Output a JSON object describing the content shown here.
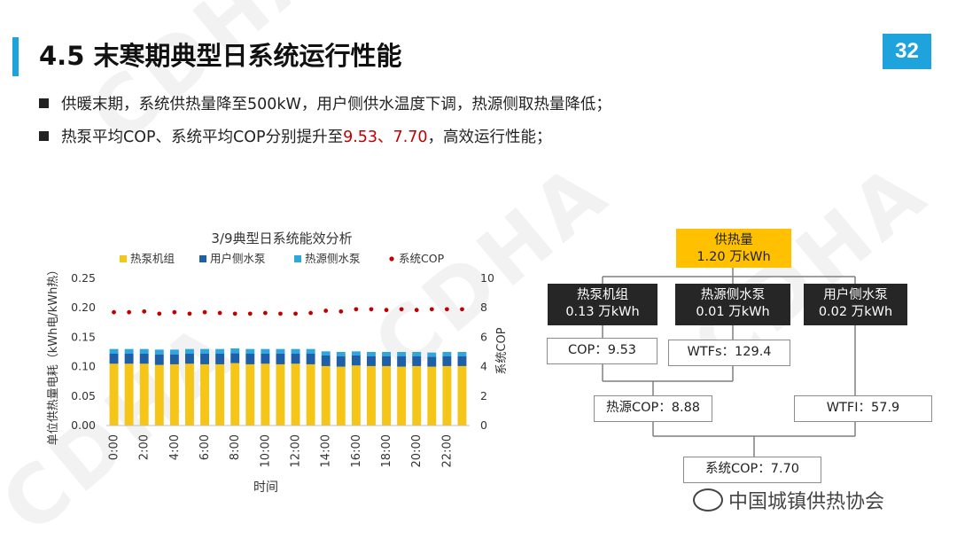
{
  "slide": {
    "title": "4.5 末寒期典型日系统运行性能",
    "page_number": "32",
    "watermark": "CDHA",
    "bullets": [
      {
        "text": "供暖末期，系统供热量降至500kW，用户侧供水温度下调，热源侧取热量降低；"
      },
      {
        "pre": "热泵平均COP、系统平均COP分别提升至",
        "highlight": "9.53、7.70",
        "post": "，高效运行性能；"
      }
    ],
    "footer_logo": "中国城镇供热协会",
    "accent_color": "#1fa3dc",
    "highlight_color": "#c00000"
  },
  "chart_data": {
    "type": "bar",
    "title": "3/9典型日系统能效分析",
    "xlabel": "时间",
    "ylabel": "单位供热量电耗（kWh电/kWh热）",
    "y2label": "系统COP",
    "ylim": [
      0,
      0.25
    ],
    "y2lim": [
      0,
      10
    ],
    "yticks": [
      "0.00",
      "0.05",
      "0.10",
      "0.15",
      "0.20",
      "0.25"
    ],
    "y2ticks": [
      "0",
      "2",
      "4",
      "6",
      "8",
      "10"
    ],
    "xtick_labels": [
      "0:00",
      "2:00",
      "4:00",
      "6:00",
      "8:00",
      "10:00",
      "12:00",
      "14:00",
      "16:00",
      "18:00",
      "20:00",
      "22:00"
    ],
    "legend_position": "top",
    "categories": [
      "0:00",
      "1:00",
      "2:00",
      "3:00",
      "4:00",
      "5:00",
      "6:00",
      "7:00",
      "8:00",
      "9:00",
      "10:00",
      "11:00",
      "12:00",
      "13:00",
      "14:00",
      "15:00",
      "16:00",
      "17:00",
      "18:00",
      "19:00",
      "20:00",
      "21:00",
      "22:00",
      "23:00"
    ],
    "series": [
      {
        "name": "热泵机组",
        "kind": "bar",
        "color": "#f5c518",
        "values": [
          0.105,
          0.105,
          0.105,
          0.103,
          0.104,
          0.105,
          0.104,
          0.104,
          0.106,
          0.104,
          0.105,
          0.104,
          0.105,
          0.104,
          0.101,
          0.1,
          0.102,
          0.101,
          0.101,
          0.1,
          0.101,
          0.1,
          0.101,
          0.101
        ]
      },
      {
        "name": "用户侧水泵",
        "kind": "bar",
        "color": "#1f5fa8",
        "values": [
          0.017,
          0.017,
          0.017,
          0.018,
          0.017,
          0.017,
          0.018,
          0.018,
          0.017,
          0.018,
          0.017,
          0.018,
          0.017,
          0.018,
          0.018,
          0.018,
          0.017,
          0.017,
          0.017,
          0.018,
          0.017,
          0.017,
          0.017,
          0.017
        ]
      },
      {
        "name": "热源侧水泵",
        "kind": "bar",
        "color": "#2fa7de",
        "values": [
          0.008,
          0.008,
          0.008,
          0.008,
          0.008,
          0.008,
          0.008,
          0.008,
          0.008,
          0.008,
          0.008,
          0.008,
          0.008,
          0.008,
          0.007,
          0.007,
          0.007,
          0.007,
          0.007,
          0.007,
          0.007,
          0.007,
          0.007,
          0.007
        ]
      },
      {
        "name": "系统COP",
        "kind": "dot",
        "axis": "y2",
        "color": "#c00000",
        "values": [
          7.7,
          7.7,
          7.75,
          7.6,
          7.7,
          7.6,
          7.7,
          7.65,
          7.6,
          7.6,
          7.65,
          7.6,
          7.6,
          7.65,
          7.8,
          7.75,
          7.9,
          7.9,
          7.85,
          7.9,
          7.85,
          7.9,
          7.9,
          7.9
        ]
      }
    ]
  },
  "diagram": {
    "supply": {
      "label": "供热量",
      "value": "1.20 万kWh"
    },
    "heat_pump": {
      "label": "热泵机组",
      "value": "0.13 万kWh"
    },
    "source_pump": {
      "label": "热源侧水泵",
      "value": "0.01 万kWh"
    },
    "user_pump": {
      "label": "用户侧水泵",
      "value": "0.02 万kWh"
    },
    "cop": "COP：9.53",
    "wtfs": "WTFs：129.4",
    "source_cop": "热源COP：8.88",
    "wtfi": "WTFI：57.9",
    "system_cop": "系统COP：7.70"
  }
}
